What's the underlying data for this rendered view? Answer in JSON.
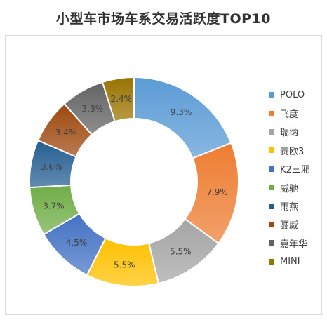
{
  "chart_data": {
    "type": "pie",
    "title": "小型车市场车系交易活跃度TOP10",
    "categories": [
      "POLO",
      "飞度",
      "瑞纳",
      "赛欧3",
      "K2三厢",
      "威驰",
      "雨燕",
      "骊威",
      "嘉年华",
      "MINI"
    ],
    "values": [
      9.3,
      7.9,
      5.5,
      5.5,
      4.5,
      3.7,
      3.6,
      3.4,
      3.3,
      2.4
    ],
    "labels": [
      "9.3%",
      "7.9%",
      "5.5%",
      "5.5%",
      "4.5%",
      "3.7%",
      "3.6%",
      "3.4%",
      "3.3%",
      "2.4%"
    ],
    "colors": [
      "#5b9bd5",
      "#ed7d31",
      "#a5a5a5",
      "#ffc000",
      "#4472c4",
      "#70ad47",
      "#255e91",
      "#9e480e",
      "#636363",
      "#997300"
    ],
    "donut": true,
    "legend_position": "right"
  }
}
